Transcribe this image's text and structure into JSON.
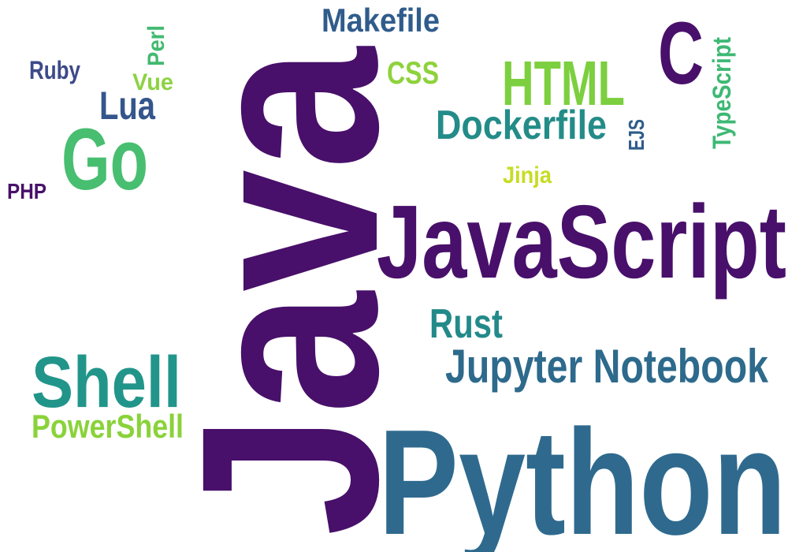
{
  "words": [
    {
      "key": "java",
      "text": "Java",
      "color": "#48106A"
    },
    {
      "key": "python",
      "text": "Python",
      "color": "#2F6A8E"
    },
    {
      "key": "javascript",
      "text": "JavaScript",
      "color": "#48106A"
    },
    {
      "key": "jupyter_notebook",
      "text": "Jupyter Notebook",
      "color": "#2D6A8C"
    },
    {
      "key": "shell",
      "text": "Shell",
      "color": "#22958A"
    },
    {
      "key": "go",
      "text": "Go",
      "color": "#48BE70"
    },
    {
      "key": "c",
      "text": "C",
      "color": "#48106A"
    },
    {
      "key": "html",
      "text": "HTML",
      "color": "#7CCF3E"
    },
    {
      "key": "dockerfile",
      "text": "Dockerfile",
      "color": "#238C88"
    },
    {
      "key": "makefile",
      "text": "Makefile",
      "color": "#305C8C"
    },
    {
      "key": "rust",
      "text": "Rust",
      "color": "#238A8A"
    },
    {
      "key": "powershell",
      "text": "PowerShell",
      "color": "#8AD23A"
    },
    {
      "key": "lua",
      "text": "Lua",
      "color": "#34568C"
    },
    {
      "key": "typescript",
      "text": "TypeScript",
      "color": "#3EB874"
    },
    {
      "key": "css",
      "text": "CSS",
      "color": "#8ED23C"
    },
    {
      "key": "ruby",
      "text": "Ruby",
      "color": "#3D4A89"
    },
    {
      "key": "vue",
      "text": "Vue",
      "color": "#8ED244"
    },
    {
      "key": "perl",
      "text": "Perl",
      "color": "#42BA70"
    },
    {
      "key": "php",
      "text": "PHP",
      "color": "#48106A"
    },
    {
      "key": "jinja",
      "text": "Jinja",
      "color": "#C7DC26"
    },
    {
      "key": "ejs",
      "text": "EJS",
      "color": "#2F5C8A"
    }
  ]
}
